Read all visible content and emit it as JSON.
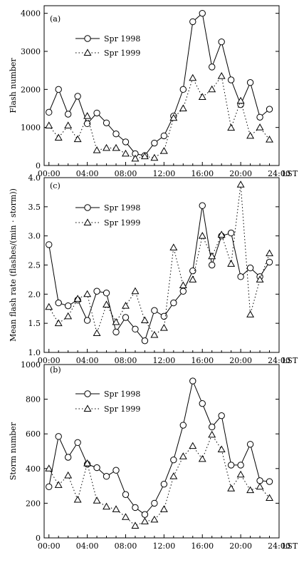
{
  "x_tick_labels": [
    "00:00",
    "04:00",
    "08:00",
    "12:00",
    "16:00",
    "20:00",
    "24:00"
  ],
  "x_unit_label": "LST",
  "chart_data": [
    {
      "type": "line",
      "panel_label": "(a)",
      "ylabel": "Flash number",
      "xlabel": "",
      "x": [
        0,
        1,
        2,
        3,
        4,
        5,
        6,
        7,
        8,
        9,
        10,
        11,
        12,
        13,
        14,
        15,
        16,
        17,
        18,
        19,
        20,
        21,
        22,
        23
      ],
      "xlim": [
        -0.5,
        24
      ],
      "ylim": [
        0,
        4200
      ],
      "yticks": [
        0,
        1000,
        2000,
        3000,
        4000
      ],
      "yticklabels": [
        "0",
        "1000",
        "2000",
        "3000",
        "4000"
      ],
      "legend_position": "top-left",
      "series": [
        {
          "name": "Spr 1998",
          "marker": "circle",
          "line": "solid",
          "values": [
            1400,
            2000,
            1350,
            1820,
            1100,
            1380,
            1120,
            830,
            620,
            310,
            260,
            590,
            780,
            1300,
            2000,
            3780,
            4000,
            2590,
            3250,
            2250,
            1600,
            2180,
            1270,
            1480
          ]
        },
        {
          "name": "Spr 1999",
          "marker": "triangle",
          "line": "dotted",
          "values": [
            1050,
            730,
            1050,
            690,
            1300,
            400,
            460,
            460,
            310,
            180,
            240,
            200,
            380,
            1250,
            1500,
            2300,
            1800,
            2000,
            2350,
            990,
            1700,
            780,
            1000,
            680
          ]
        }
      ]
    },
    {
      "type": "line",
      "panel_label": "(c)",
      "ylabel": "Mean flash rate (flashes/(min · storm))",
      "xlabel": "",
      "x": [
        0,
        1,
        2,
        3,
        4,
        5,
        6,
        7,
        8,
        9,
        10,
        11,
        12,
        13,
        14,
        15,
        16,
        17,
        18,
        19,
        20,
        21,
        22,
        23
      ],
      "xlim": [
        -0.5,
        24
      ],
      "ylim": [
        1.0,
        4.0
      ],
      "yticks": [
        1.0,
        1.5,
        2.0,
        2.5,
        3.0,
        3.5,
        4.0
      ],
      "yticklabels": [
        "1.0",
        "1.5",
        "2.0",
        "2.5",
        "3.0",
        "3.5",
        "4.0"
      ],
      "legend_position": "top-left",
      "series": [
        {
          "name": "Spr 1998",
          "marker": "circle",
          "line": "solid",
          "values": [
            2.85,
            1.85,
            1.8,
            1.9,
            1.55,
            2.05,
            2.02,
            1.35,
            1.6,
            1.4,
            1.2,
            1.72,
            1.62,
            1.85,
            2.05,
            2.4,
            3.52,
            2.5,
            3.0,
            3.05,
            2.3,
            2.45,
            2.3,
            2.55
          ]
        },
        {
          "name": "Spr 1999",
          "marker": "triangle",
          "line": "dotted",
          "values": [
            1.78,
            1.5,
            1.62,
            1.92,
            2.0,
            1.33,
            1.82,
            1.52,
            1.8,
            2.05,
            1.55,
            1.3,
            1.42,
            2.8,
            2.15,
            2.25,
            3.0,
            2.65,
            3.02,
            2.52,
            3.88,
            1.65,
            2.25,
            2.7
          ]
        }
      ]
    },
    {
      "type": "line",
      "panel_label": "(b)",
      "ylabel": "Storm number",
      "xlabel": "",
      "x": [
        0,
        1,
        2,
        3,
        4,
        5,
        6,
        7,
        8,
        9,
        10,
        11,
        12,
        13,
        14,
        15,
        16,
        17,
        18,
        19,
        20,
        21,
        22,
        23
      ],
      "xlim": [
        -0.5,
        24
      ],
      "ylim": [
        0,
        1000
      ],
      "yticks": [
        0,
        200,
        400,
        600,
        800,
        1000
      ],
      "yticklabels": [
        "0",
        "200",
        "400",
        "600",
        "800",
        "1000"
      ],
      "legend_position": "top-left",
      "series": [
        {
          "name": "Spr 1998",
          "marker": "circle",
          "line": "solid",
          "values": [
            295,
            585,
            465,
            550,
            425,
            405,
            355,
            390,
            250,
            175,
            135,
            200,
            310,
            450,
            650,
            905,
            775,
            640,
            705,
            420,
            420,
            540,
            330,
            325
          ]
        },
        {
          "name": "Spr 1999",
          "marker": "triangle",
          "line": "dotted",
          "values": [
            400,
            305,
            360,
            220,
            430,
            215,
            180,
            165,
            120,
            70,
            95,
            105,
            165,
            355,
            470,
            530,
            455,
            595,
            510,
            285,
            365,
            275,
            295,
            230
          ]
        }
      ]
    }
  ]
}
